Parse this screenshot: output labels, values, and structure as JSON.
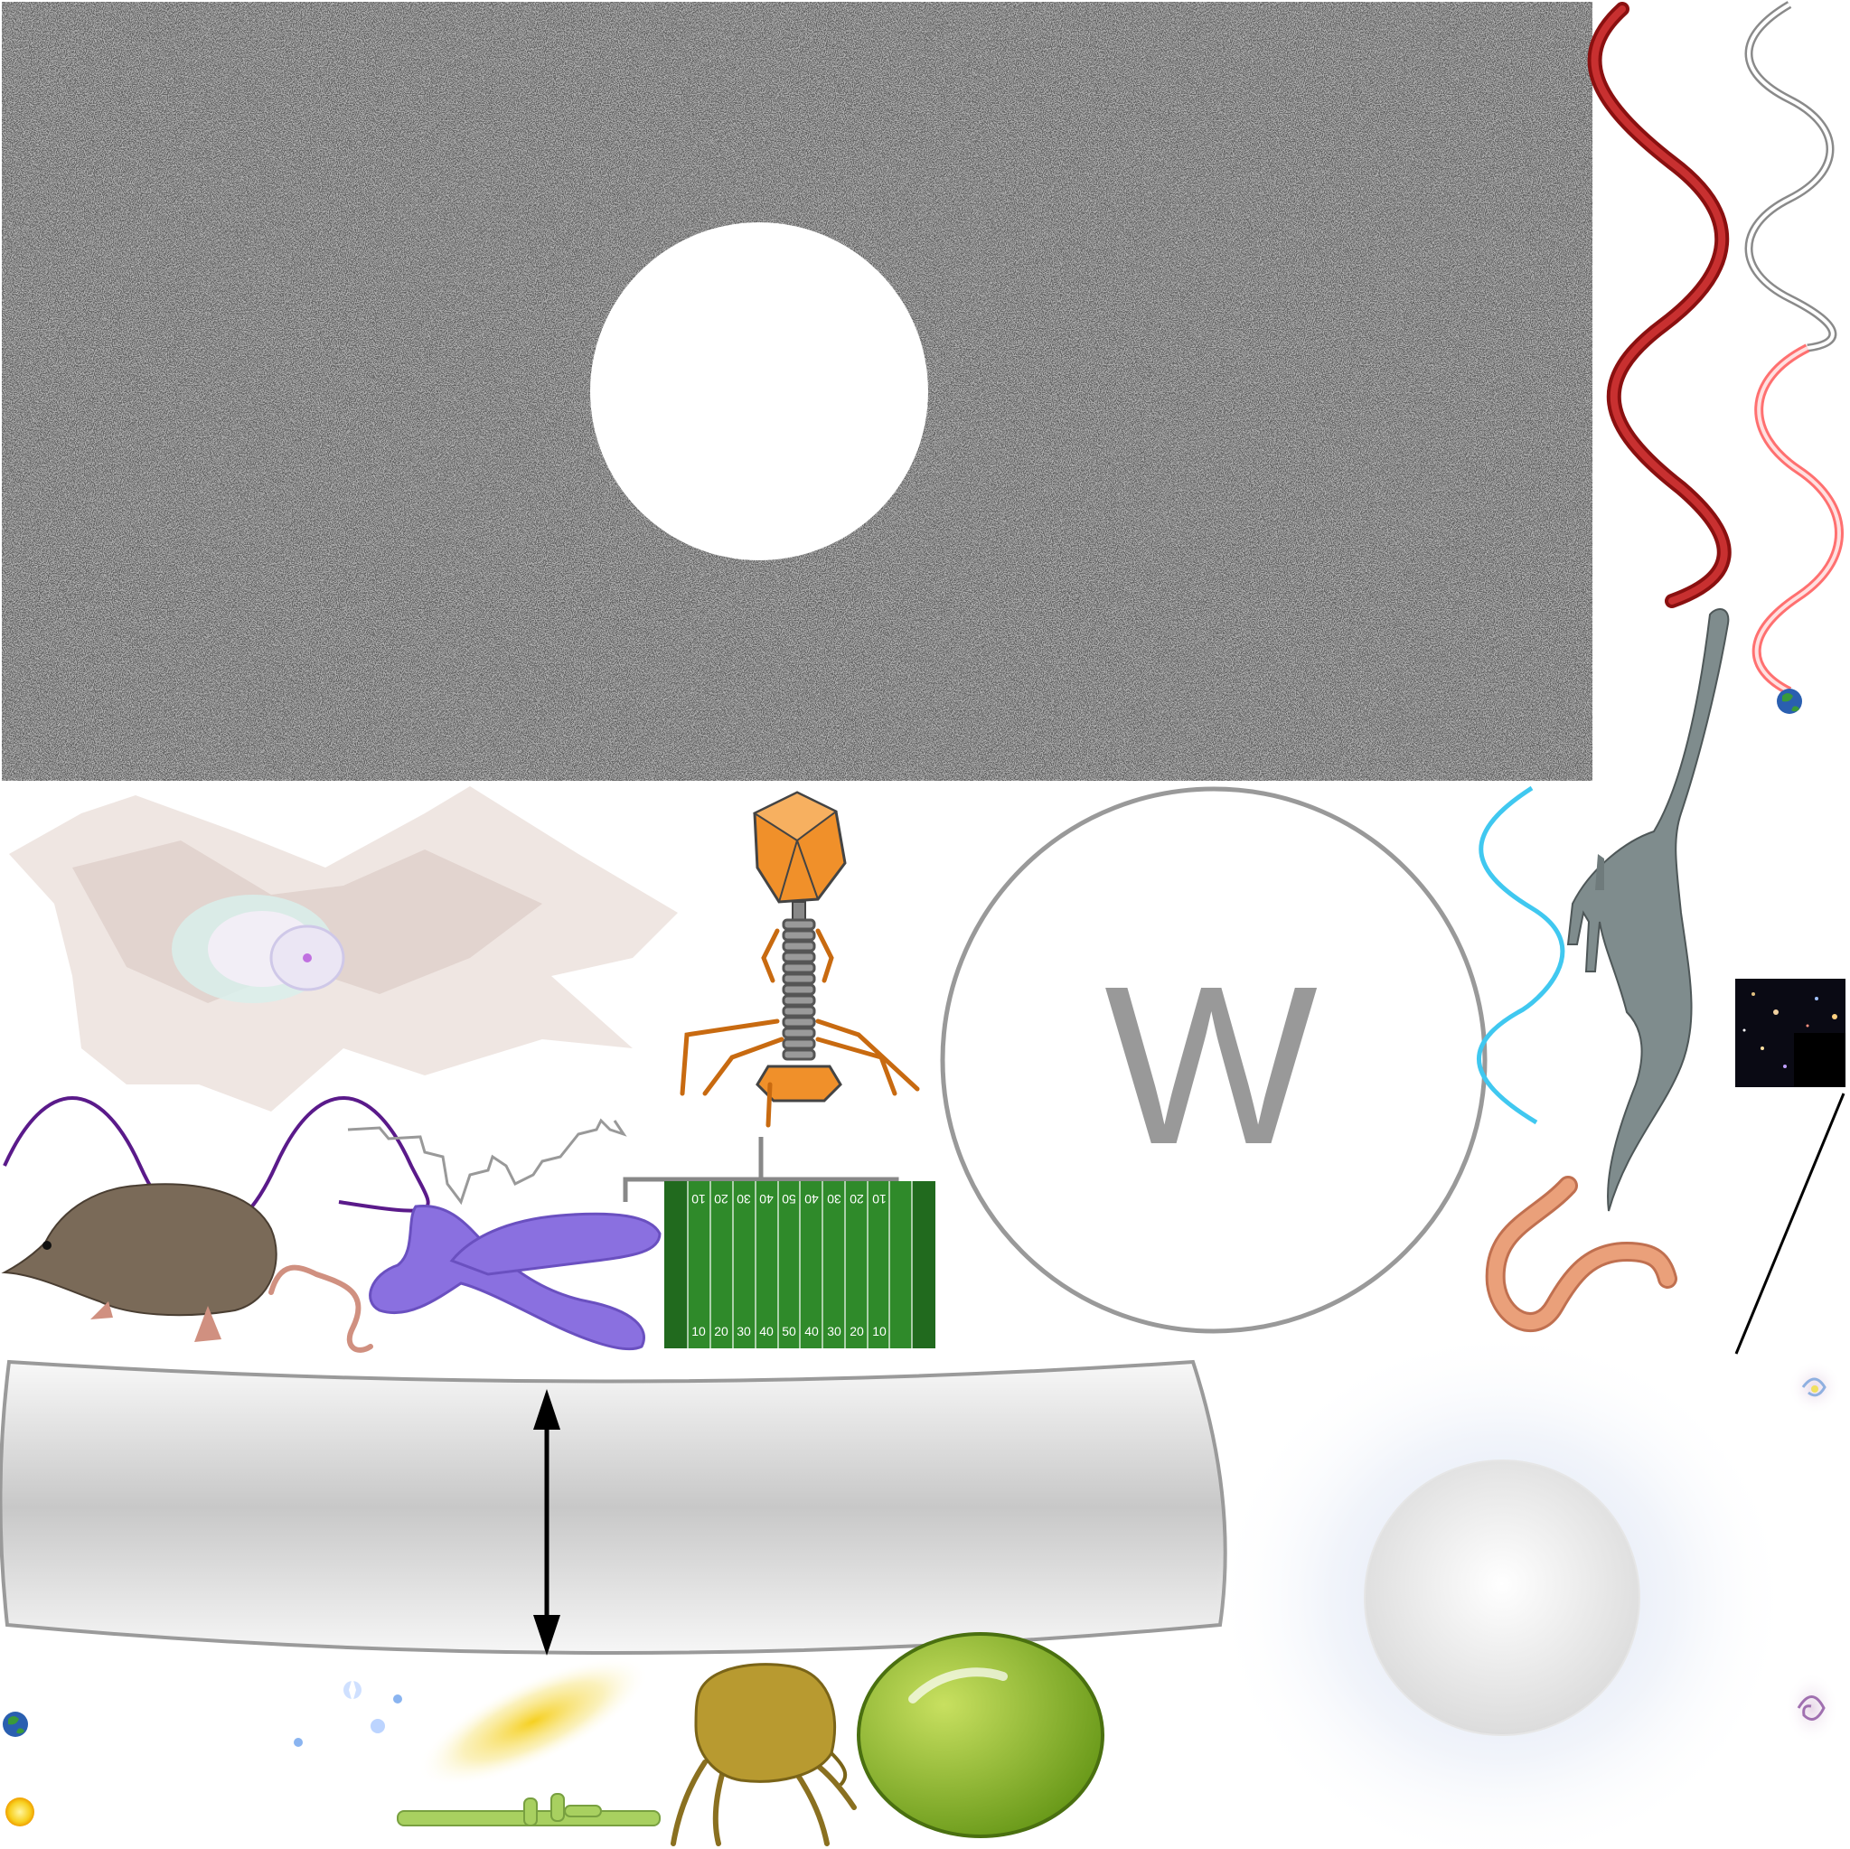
{
  "sprites": {
    "w_badge": {
      "letter": "W"
    },
    "football_field": {
      "top_yard_numbers": [
        "10",
        "20",
        "30",
        "40",
        "50",
        "40",
        "30",
        "20",
        "10"
      ],
      "bottom_yard_numbers": [
        "10",
        "20",
        "30",
        "40",
        "50",
        "40",
        "30",
        "20",
        "10"
      ]
    }
  },
  "colors": {
    "noise_dark": "#222222",
    "noise_light": "#6a6a6a",
    "dna_red": "#b02020",
    "wave_purple": "#5a1a8a",
    "wave_cyan": "#40c8f0",
    "phage_orange": "#f0902a",
    "chromosome_purple": "#8a70e0",
    "field_green": "#2f8a2a",
    "dino_gray": "#7f8c8d",
    "worm_pink": "#eaa07a",
    "seed_green": "#8ab82a",
    "mite_gold": "#b89a30",
    "w_gray": "#999999"
  }
}
